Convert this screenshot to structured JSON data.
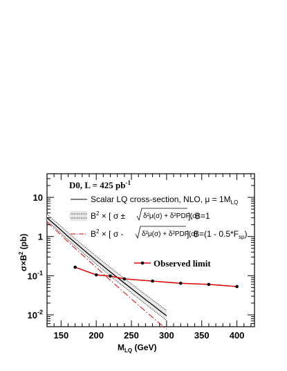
{
  "chart_data": {
    "type": "line",
    "title": "D0, L = 425 pb",
    "title_sup": "-1",
    "xlabel": "M",
    "xlabel_sub": "LQ",
    "xlabel_unit": " (GeV)",
    "ylabel": "σ×B",
    "ylabel_sup": "2",
    "ylabel_unit": " (pb)",
    "xlim": [
      130,
      425
    ],
    "ylim": [
      0.005,
      40
    ],
    "y_scale": "log",
    "x_ticks": [
      150,
      200,
      250,
      300,
      350,
      400
    ],
    "y_ticks": [
      {
        "value": 0.01,
        "base": "10",
        "exp": "-2"
      },
      {
        "value": 0.1,
        "base": "10",
        "exp": "-1"
      },
      {
        "value": 1,
        "base": "1",
        "exp": ""
      },
      {
        "value": 10,
        "base": "10",
        "exp": ""
      }
    ],
    "grid": false,
    "legend_position": "top",
    "legend": {
      "entry1": "Scalar LQ cross-section, NLO, μ = 1M",
      "entry1_sub": "LQ",
      "entry2_pre": "B",
      "entry2_sup": "2",
      "entry2_mid": " × [ σ ± ",
      "entry2_rad": "δ²μ(σ) + δ²PDF(σ)",
      "entry2_post": " ], B=1",
      "entry3_pre": "B",
      "entry3_sup": "2",
      "entry3_mid": " × [ σ - ",
      "entry3_rad": "δ²μ(σ) + δ²PDF(σ)",
      "entry3_post": " ], B=(1 - 0.5*F",
      "entry3_sub": "sp",
      "entry3_end": ")",
      "observed": "Observed limit"
    },
    "series": [
      {
        "key": "theory_central",
        "color": "#000000",
        "style": "solid",
        "x": [
          130,
          140,
          150,
          160,
          170,
          180,
          190,
          200,
          210,
          220,
          230,
          240,
          250,
          260,
          270,
          280,
          290,
          300
        ],
        "y": [
          3.0,
          2.1,
          1.45,
          1.0,
          0.7,
          0.49,
          0.345,
          0.245,
          0.175,
          0.125,
          0.09,
          0.065,
          0.047,
          0.034,
          0.0245,
          0.018,
          0.013,
          0.0095
        ]
      },
      {
        "key": "theory_upper",
        "color": "#000000",
        "style": "dotted",
        "x": [
          130,
          140,
          150,
          160,
          170,
          180,
          190,
          200,
          210,
          220,
          230,
          240,
          250,
          260,
          270,
          280,
          290,
          300
        ],
        "y": [
          3.7,
          2.6,
          1.8,
          1.25,
          0.88,
          0.62,
          0.44,
          0.315,
          0.225,
          0.162,
          0.117,
          0.085,
          0.062,
          0.045,
          0.033,
          0.0242,
          0.0177,
          0.013
        ]
      },
      {
        "key": "theory_lower",
        "color": "#000000",
        "style": "dotted",
        "x": [
          130,
          140,
          150,
          160,
          170,
          180,
          190,
          200,
          210,
          220,
          230,
          240,
          250,
          260,
          270,
          280,
          290,
          300
        ],
        "y": [
          2.5,
          1.75,
          1.2,
          0.82,
          0.57,
          0.4,
          0.28,
          0.197,
          0.14,
          0.099,
          0.071,
          0.051,
          0.0365,
          0.0263,
          0.019,
          0.0137,
          0.0099,
          0.0072
        ]
      },
      {
        "key": "theory_lower_fsp",
        "color": "#dd0000",
        "style": "dashdot",
        "x": [
          130,
          140,
          150,
          160,
          170,
          180,
          190,
          200,
          210,
          220,
          230,
          240,
          250,
          260,
          270,
          280,
          290,
          300
        ],
        "y": [
          2.3,
          1.6,
          1.08,
          0.73,
          0.5,
          0.345,
          0.237,
          0.163,
          0.112,
          0.077,
          0.053,
          0.037,
          0.0255,
          0.0178,
          0.0124,
          0.0087,
          0.0061,
          0.0043
        ]
      },
      {
        "key": "observed",
        "color": "#dd0000",
        "style": "solid-markers",
        "x": [
          170,
          200,
          220,
          240,
          280,
          320,
          360,
          400
        ],
        "y": [
          0.165,
          0.105,
          0.098,
          0.083,
          0.073,
          0.064,
          0.06,
          0.053
        ]
      }
    ]
  }
}
